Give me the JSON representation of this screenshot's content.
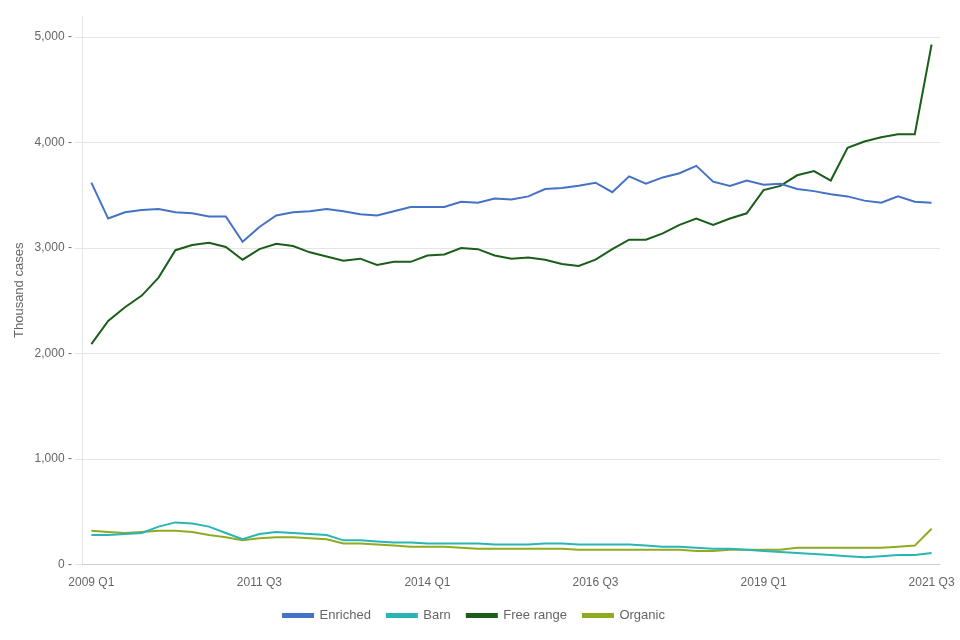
{
  "chart_data": {
    "type": "line",
    "ylabel": "Thousand cases",
    "categories": [
      "2009 Q1",
      null,
      null,
      null,
      null,
      null,
      null,
      null,
      null,
      null,
      "2011 Q3",
      null,
      null,
      null,
      null,
      null,
      null,
      null,
      null,
      null,
      "2014 Q1",
      null,
      null,
      null,
      null,
      null,
      null,
      null,
      null,
      null,
      "2016 Q3",
      null,
      null,
      null,
      null,
      null,
      null,
      null,
      null,
      null,
      "2019 Q1",
      null,
      null,
      null,
      null,
      null,
      null,
      null,
      null,
      null,
      "2021 Q3"
    ],
    "series": [
      {
        "name": "Enriched",
        "color": "#4472c4",
        "values": [
          3620,
          3280,
          3340,
          3360,
          3370,
          3340,
          3330,
          3300,
          3300,
          3060,
          3200,
          3310,
          3340,
          3350,
          3370,
          3350,
          3320,
          3310,
          3350,
          3390,
          3390,
          3390,
          3440,
          3430,
          3470,
          3460,
          3490,
          3560,
          3570,
          3590,
          3620,
          3530,
          3680,
          3610,
          3670,
          3710,
          3780,
          3630,
          3590,
          3640,
          3600,
          3610,
          3560,
          3540,
          3510,
          3490,
          3450,
          3430,
          3490,
          3440,
          3430
        ]
      },
      {
        "name": "Barn",
        "color": "#2ab5b5",
        "values": [
          280,
          280,
          290,
          300,
          360,
          400,
          390,
          360,
          300,
          240,
          290,
          310,
          300,
          290,
          280,
          230,
          230,
          220,
          210,
          210,
          200,
          200,
          200,
          200,
          190,
          190,
          190,
          200,
          200,
          190,
          190,
          190,
          190,
          180,
          170,
          170,
          160,
          150,
          150,
          140,
          130,
          120,
          110,
          100,
          90,
          80,
          70,
          80,
          90,
          90,
          110
        ]
      },
      {
        "name": "Free range",
        "color": "#1a5e1a",
        "values": [
          2090,
          2310,
          2440,
          2550,
          2720,
          2980,
          3030,
          3050,
          3010,
          2890,
          2990,
          3040,
          3020,
          2960,
          2920,
          2880,
          2900,
          2840,
          2870,
          2870,
          2930,
          2940,
          3000,
          2990,
          2930,
          2900,
          2910,
          2890,
          2850,
          2830,
          2890,
          2990,
          3080,
          3080,
          3140,
          3220,
          3280,
          3220,
          3280,
          3330,
          3550,
          3590,
          3690,
          3730,
          3640,
          3950,
          4010,
          4050,
          4080,
          4080,
          4930
        ]
      },
      {
        "name": "Organic",
        "color": "#8fac20",
        "values": [
          320,
          310,
          300,
          310,
          320,
          320,
          310,
          280,
          260,
          230,
          250,
          260,
          260,
          250,
          240,
          200,
          200,
          190,
          180,
          170,
          170,
          170,
          160,
          150,
          150,
          150,
          150,
          150,
          150,
          140,
          140,
          140,
          140,
          140,
          140,
          140,
          130,
          130,
          140,
          140,
          140,
          140,
          160,
          160,
          160,
          160,
          160,
          160,
          170,
          180,
          340
        ]
      }
    ],
    "ylim": [
      0,
      5200
    ],
    "yticks": [
      {
        "value": 0,
        "label": "0 -"
      },
      {
        "value": 1000,
        "label": "1,000 -"
      },
      {
        "value": 2000,
        "label": "2,000 -"
      },
      {
        "value": 3000,
        "label": "3,000 -"
      },
      {
        "value": 4000,
        "label": "4,000 -"
      },
      {
        "value": 5000,
        "label": "5,000 -"
      }
    ],
    "grid": true,
    "legend": "bottom"
  }
}
